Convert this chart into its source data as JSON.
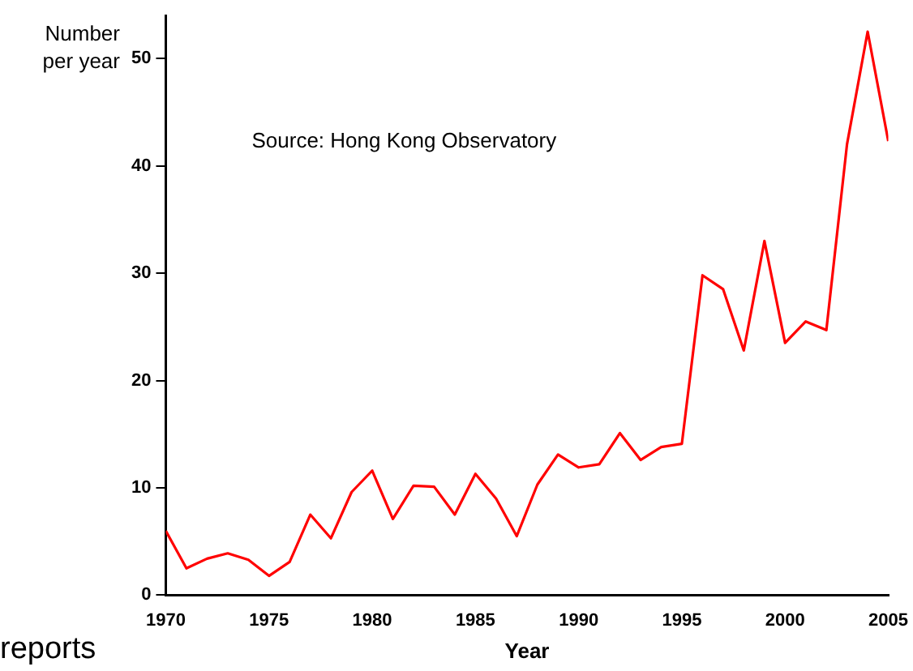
{
  "chart_data": {
    "type": "line",
    "xlabel": "Year",
    "ylabel": "Number per year",
    "x": [
      1970,
      1971,
      1972,
      1973,
      1974,
      1975,
      1976,
      1977,
      1978,
      1979,
      1980,
      1981,
      1982,
      1983,
      1984,
      1985,
      1986,
      1987,
      1988,
      1989,
      1990,
      1991,
      1992,
      1993,
      1994,
      1995,
      1996,
      1997,
      1998,
      1999,
      2000,
      2001,
      2002,
      2003,
      2004,
      2005
    ],
    "series": [
      {
        "color": "#ff0000",
        "values": [
          6,
          2.5,
          3.4,
          3.9,
          3.3,
          1.8,
          3.1,
          7.5,
          5.3,
          9.6,
          11.6,
          7.1,
          10.2,
          10.1,
          7.5,
          11.3,
          9,
          5.5,
          10.3,
          13.1,
          11.9,
          12.2,
          15.1,
          12.6,
          13.8,
          14.1,
          29.8,
          28.5,
          22.8,
          33,
          23.5,
          25.5,
          24.7,
          42,
          52.5,
          42.3
        ]
      }
    ],
    "xlim": [
      1970,
      2005
    ],
    "xticks": [
      1970,
      1975,
      1980,
      1985,
      1990,
      1995,
      2000,
      2005
    ],
    "ylim": [
      0,
      54
    ],
    "yticks": [
      0,
      10,
      20,
      30,
      40,
      50
    ],
    "grid": false,
    "legend": false,
    "marker": "none",
    "line_style": "solid",
    "annotations": [
      "Source: Hong Kong Observatory",
      "reports"
    ]
  }
}
